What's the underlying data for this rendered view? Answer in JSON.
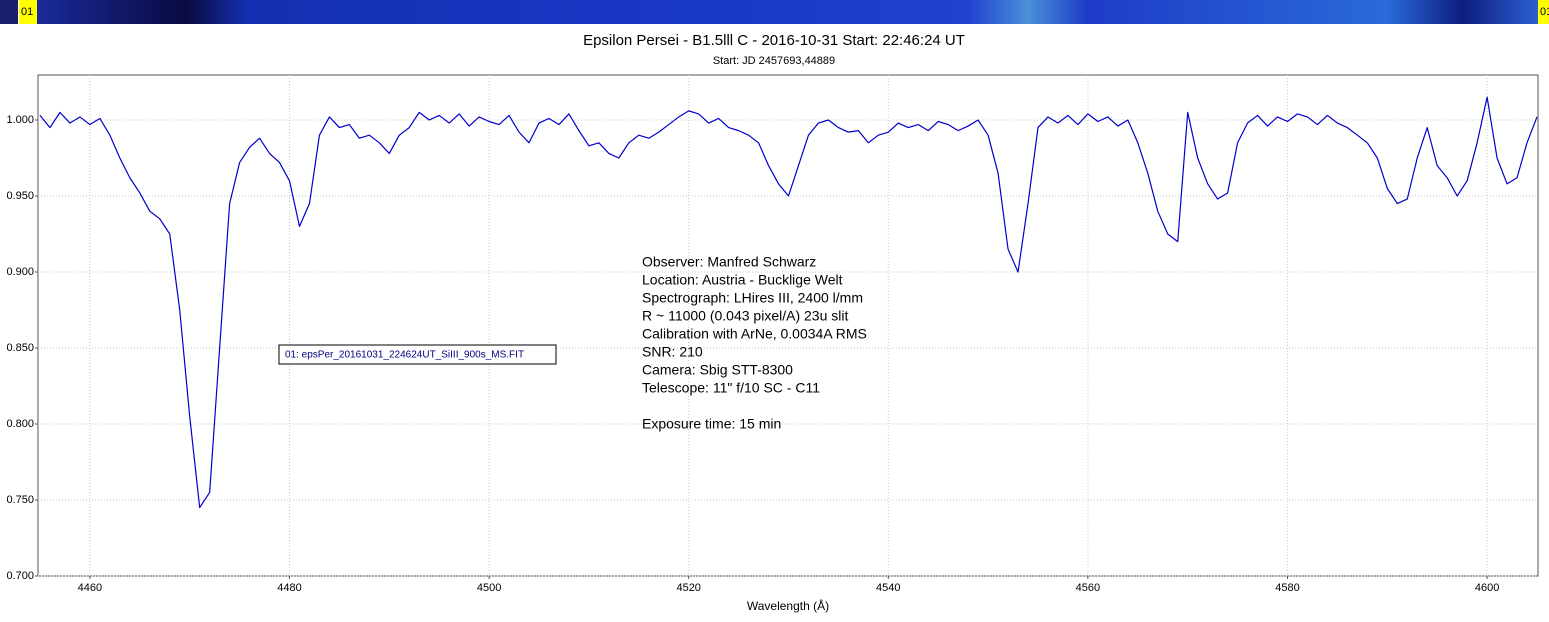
{
  "chart_data": {
    "type": "line",
    "strip_label": "01",
    "title": "Epsilon Persei - B1.5lll C - 2016-10-31 Start: 22:46:24 UT",
    "subtitle": "Start: JD 2457693,44889",
    "x_label": "Wavelength (Å)",
    "annotations": [
      "Observer: Manfred Schwarz",
      "Location: Austria - Bucklige Welt",
      "Spectrograph: LHires III, 2400 l/mm",
      "R ~ 11000 (0.043 pixel/A) 23u slit",
      "Calibration with ArNe, 0.0034A RMS",
      "SNR: 210",
      "Camera: Sbig STT-8300",
      "Telescope: 11\" f/10 SC - C11"
    ],
    "exposure_note": "Exposure time: 15 min",
    "xlim": [
      4454.8,
      4605.1
    ],
    "ylim": [
      0.7,
      1.0296
    ],
    "xticks": [
      4460,
      4480,
      4500,
      4520,
      4540,
      4560,
      4580,
      4600
    ],
    "yticks": [
      {
        "value": 0.7,
        "label": "0.700"
      },
      {
        "value": 0.75,
        "label": "0.750"
      },
      {
        "value": 0.8,
        "label": "0.800"
      },
      {
        "value": 0.85,
        "label": "0.850"
      },
      {
        "value": 0.9,
        "label": "0.900"
      },
      {
        "value": 0.95,
        "label": "0.950"
      },
      {
        "value": 1.0,
        "label": "1.000"
      }
    ],
    "grid": true,
    "series": [
      {
        "name": "01: epsPer_20161031_224624UT_SiIII_900s_MS.FIT",
        "color": "#0000cc",
        "x": [
          4455,
          4456,
          4457,
          4458,
          4459,
          4460,
          4461,
          4462,
          4463,
          4464,
          4465,
          4466,
          4467,
          4468,
          4469,
          4470,
          4471,
          4472,
          4473,
          4474,
          4475,
          4476,
          4477,
          4478,
          4479,
          4480,
          4481,
          4482,
          4483,
          4484,
          4485,
          4486,
          4487,
          4488,
          4489,
          4490,
          4491,
          4492,
          4493,
          4494,
          4495,
          4496,
          4497,
          4498,
          4499,
          4500,
          4501,
          4502,
          4503,
          4504,
          4505,
          4506,
          4507,
          4508,
          4509,
          4510,
          4511,
          4512,
          4513,
          4514,
          4515,
          4516,
          4517,
          4518,
          4519,
          4520,
          4521,
          4522,
          4523,
          4524,
          4525,
          4526,
          4527,
          4528,
          4529,
          4530,
          4531,
          4532,
          4533,
          4534,
          4535,
          4536,
          4537,
          4538,
          4539,
          4540,
          4541,
          4542,
          4543,
          4544,
          4545,
          4546,
          4547,
          4548,
          4549,
          4550,
          4551,
          4552,
          4553,
          4554,
          4555,
          4556,
          4557,
          4558,
          4559,
          4560,
          4561,
          4562,
          4563,
          4564,
          4565,
          4566,
          4567,
          4568,
          4569,
          4570,
          4571,
          4572,
          4573,
          4574,
          4575,
          4576,
          4577,
          4578,
          4579,
          4580,
          4581,
          4582,
          4583,
          4584,
          4585,
          4586,
          4587,
          4588,
          4589,
          4590,
          4591,
          4592,
          4593,
          4594,
          4595,
          4596,
          4597,
          4598,
          4599,
          4600,
          4601,
          4602,
          4603,
          4604,
          4605
        ],
        "values": [
          1.003,
          0.995,
          1.005,
          0.998,
          1.002,
          0.997,
          1.001,
          0.99,
          0.975,
          0.962,
          0.952,
          0.94,
          0.935,
          0.925,
          0.875,
          0.805,
          0.745,
          0.755,
          0.85,
          0.945,
          0.972,
          0.982,
          0.988,
          0.978,
          0.972,
          0.96,
          0.93,
          0.945,
          0.99,
          1.002,
          0.995,
          0.997,
          0.988,
          0.99,
          0.985,
          0.978,
          0.99,
          0.995,
          1.005,
          1.0,
          1.003,
          0.998,
          1.004,
          0.996,
          1.002,
          0.999,
          0.997,
          1.003,
          0.992,
          0.985,
          0.998,
          1.001,
          0.997,
          1.004,
          0.993,
          0.983,
          0.985,
          0.978,
          0.975,
          0.985,
          0.99,
          0.988,
          0.992,
          0.997,
          1.002,
          1.006,
          1.004,
          0.998,
          1.001,
          0.995,
          0.993,
          0.99,
          0.985,
          0.97,
          0.958,
          0.95,
          0.97,
          0.99,
          0.998,
          1.0,
          0.995,
          0.992,
          0.993,
          0.985,
          0.99,
          0.992,
          0.998,
          0.995,
          0.997,
          0.993,
          0.999,
          0.997,
          0.993,
          0.996,
          1.0,
          0.99,
          0.965,
          0.915,
          0.9,
          0.945,
          0.995,
          1.002,
          0.998,
          1.003,
          0.997,
          1.004,
          0.999,
          1.002,
          0.996,
          1.0,
          0.985,
          0.965,
          0.94,
          0.925,
          0.92,
          1.005,
          0.975,
          0.958,
          0.948,
          0.952,
          0.985,
          0.998,
          1.003,
          0.996,
          1.002,
          0.999,
          1.004,
          1.002,
          0.997,
          1.003,
          0.998,
          0.995,
          0.99,
          0.985,
          0.975,
          0.955,
          0.945,
          0.948,
          0.975,
          0.995,
          0.97,
          0.962,
          0.95,
          0.96,
          0.985,
          1.015,
          0.975,
          0.958,
          0.962,
          0.985,
          1.002
        ]
      }
    ]
  }
}
